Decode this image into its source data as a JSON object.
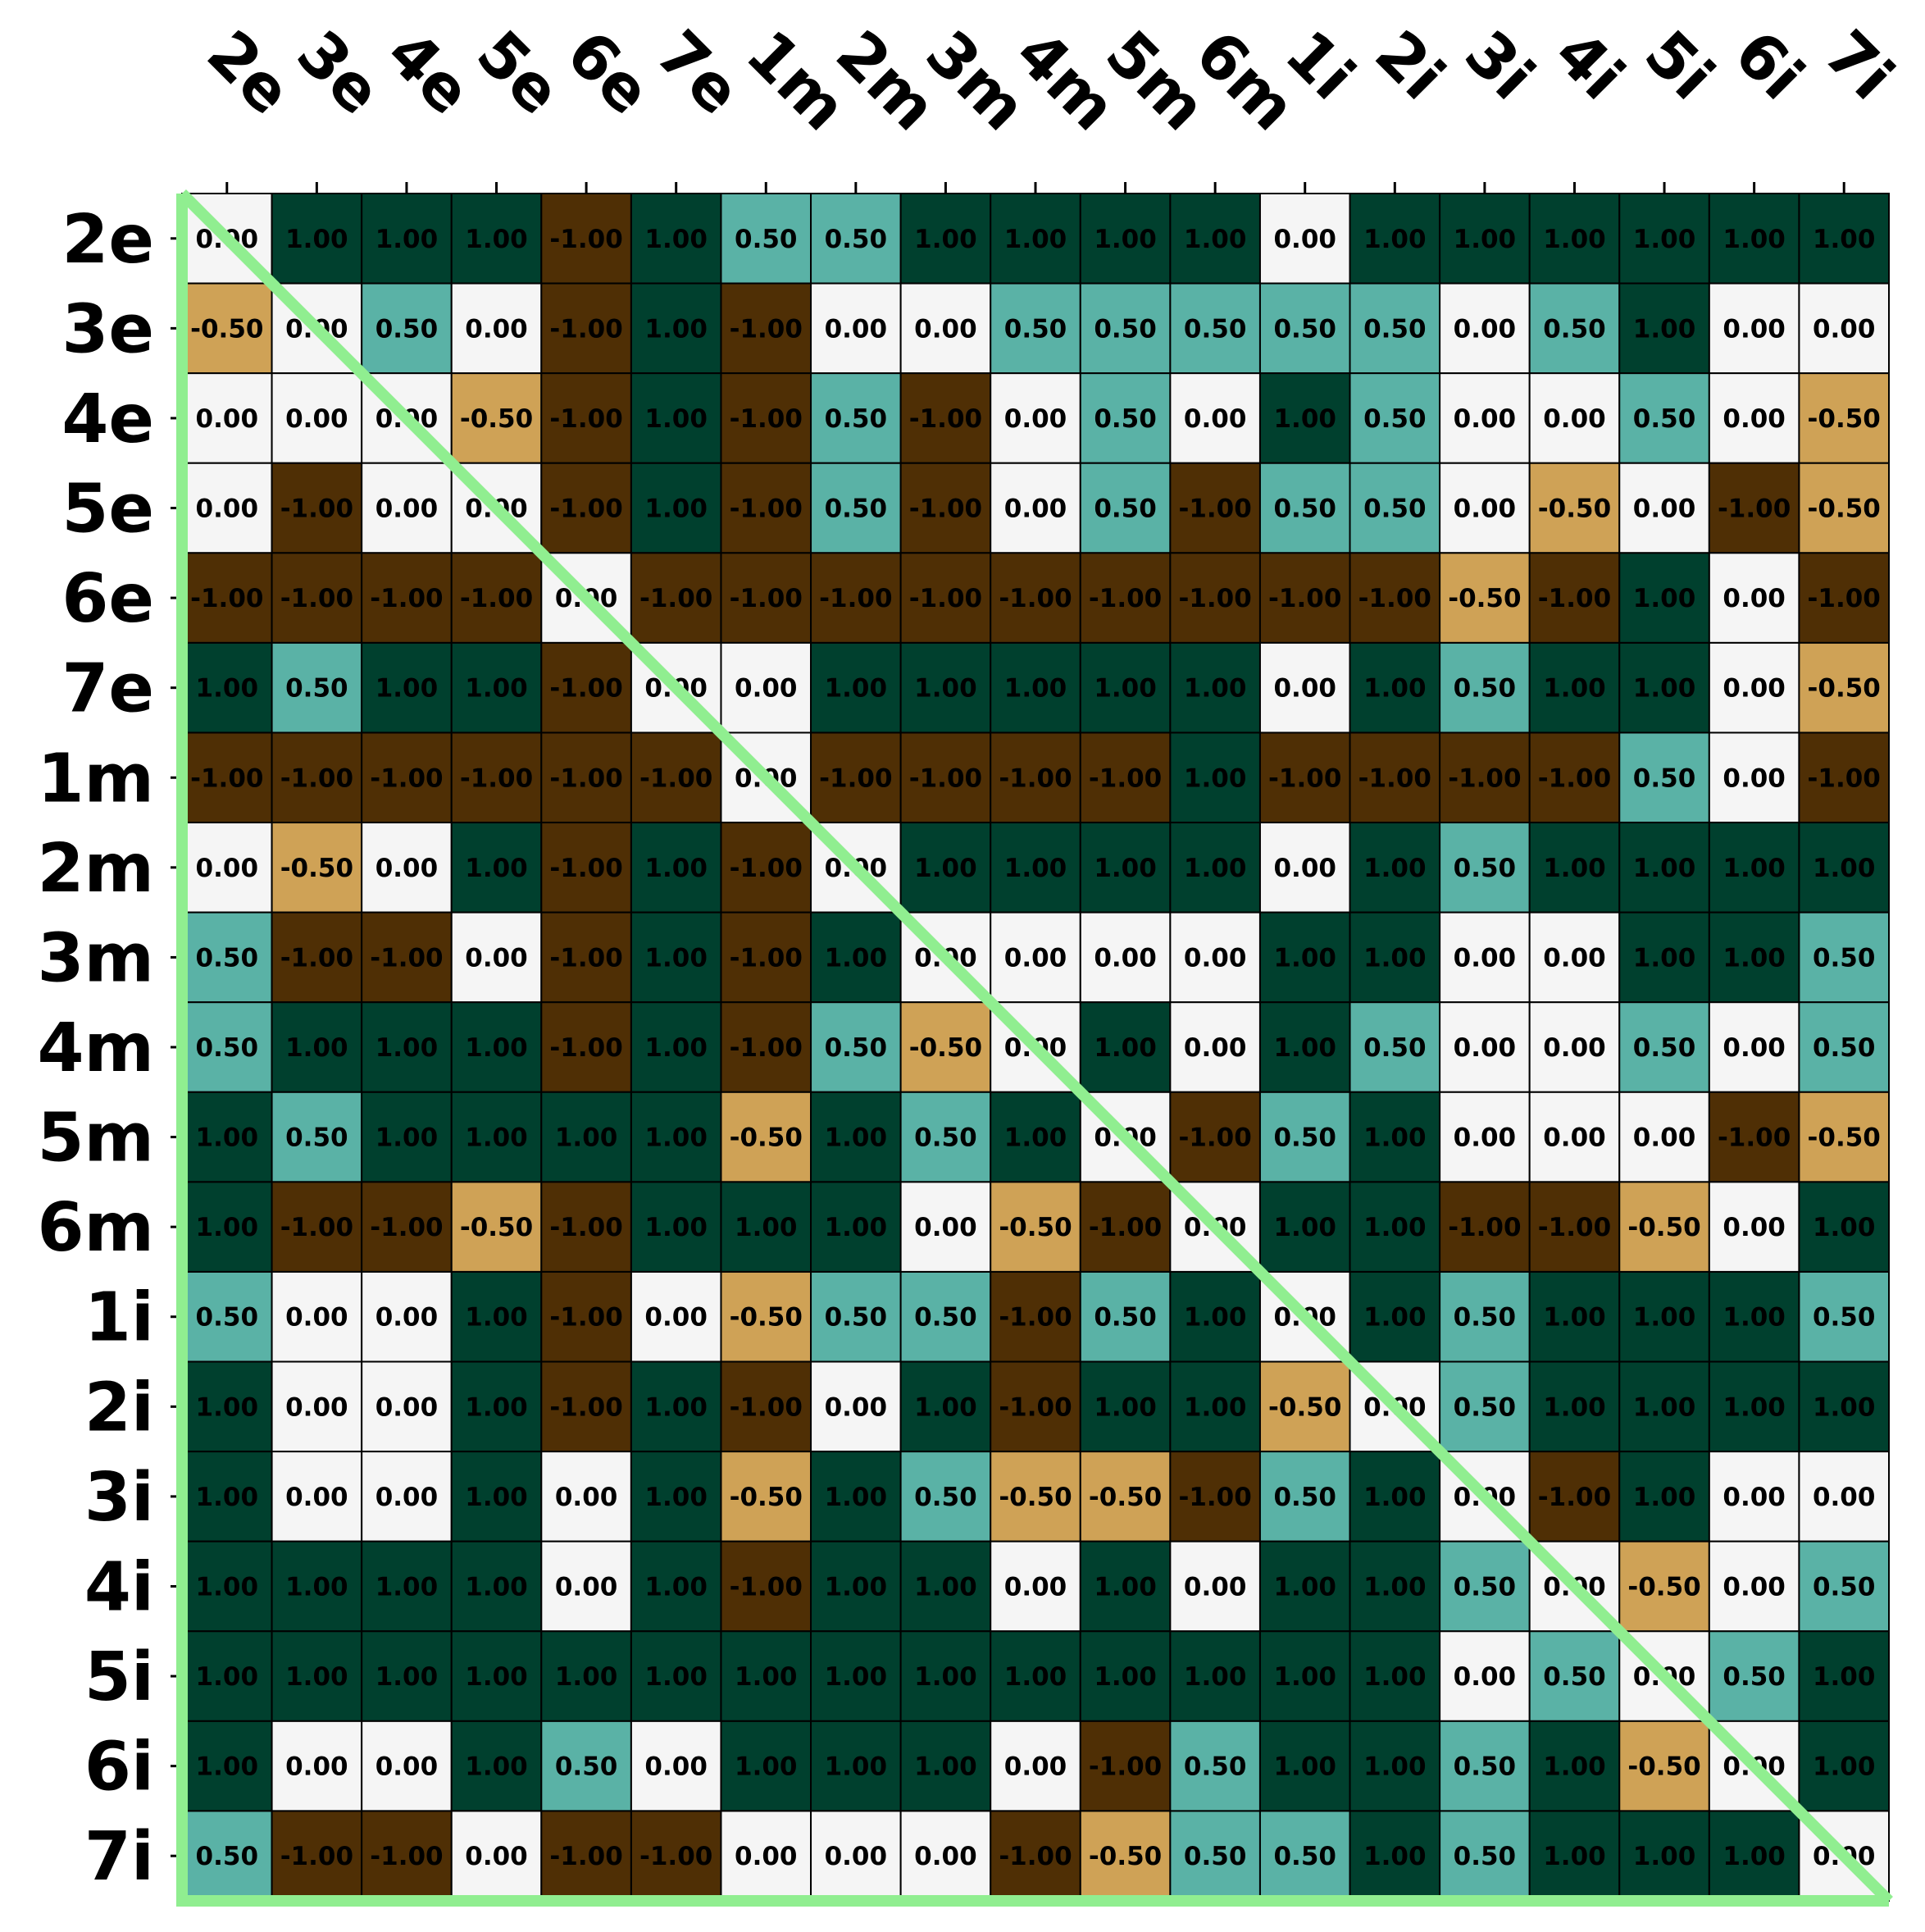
{
  "chart_data": {
    "type": "heatmap",
    "title": "",
    "xlabel": "",
    "ylabel": "",
    "x_labels": [
      "2e",
      "3e",
      "4e",
      "5e",
      "6e",
      "7e",
      "1m",
      "2m",
      "3m",
      "4m",
      "5m",
      "6m",
      "1i",
      "2i",
      "3i",
      "4i",
      "5i",
      "6i",
      "7i"
    ],
    "y_labels": [
      "2e",
      "3e",
      "4e",
      "5e",
      "6e",
      "7e",
      "1m",
      "2m",
      "3m",
      "4m",
      "5m",
      "6m",
      "1i",
      "2i",
      "3i",
      "4i",
      "5i",
      "6i",
      "7i"
    ],
    "value_format": "0.00",
    "color_scale": {
      "-1.0": "#4f2f05",
      "-0.5": "#cfa256",
      "0.0": "#f5f5f5",
      "0.5": "#5ab2a6",
      "1.0": "#00402e"
    },
    "diagonal_line_color": "#90ee90",
    "border_color": "#90ee90",
    "x_labels_position": "top",
    "values": [
      [
        0,
        1,
        1,
        1,
        -1,
        1,
        0.5,
        0.5,
        1,
        1,
        1,
        1,
        0,
        1,
        1,
        1,
        1,
        1,
        1
      ],
      [
        -0.5,
        0,
        0.5,
        0,
        -1,
        1,
        -1,
        0,
        0,
        0.5,
        0.5,
        0.5,
        0.5,
        0.5,
        0,
        0.5,
        1,
        0,
        0
      ],
      [
        0,
        0,
        0,
        -0.5,
        -1,
        1,
        -1,
        0.5,
        -1,
        0,
        0.5,
        0,
        1,
        0.5,
        0,
        0,
        0.5,
        0,
        -0.5
      ],
      [
        0,
        -1,
        0,
        0,
        -1,
        1,
        -1,
        0.5,
        -1,
        0,
        0.5,
        -1,
        0.5,
        0.5,
        0,
        -0.5,
        0,
        -1,
        -0.5
      ],
      [
        -1,
        -1,
        -1,
        -1,
        0,
        -1,
        -1,
        -1,
        -1,
        -1,
        -1,
        -1,
        -1,
        -1,
        -0.5,
        -1,
        1,
        0,
        -1
      ],
      [
        1,
        0.5,
        1,
        1,
        -1,
        0,
        0,
        1,
        1,
        1,
        1,
        1,
        0,
        1,
        0.5,
        1,
        1,
        0,
        -0.5
      ],
      [
        -1,
        -1,
        -1,
        -1,
        -1,
        -1,
        0,
        -1,
        -1,
        -1,
        -1,
        1,
        -1,
        -1,
        -1,
        -1,
        0.5,
        0,
        -1
      ],
      [
        0,
        -0.5,
        0,
        1,
        -1,
        1,
        -1,
        0,
        1,
        1,
        1,
        1,
        0,
        1,
        0.5,
        1,
        1,
        1,
        1
      ],
      [
        0.5,
        -1,
        -1,
        0,
        -1,
        1,
        -1,
        1,
        0,
        0,
        0,
        0,
        1,
        1,
        0,
        0,
        1,
        1,
        0.5
      ],
      [
        0.5,
        1,
        1,
        1,
        -1,
        1,
        -1,
        0.5,
        -0.5,
        0,
        1,
        0,
        1,
        0.5,
        0,
        0,
        0.5,
        0,
        0.5
      ],
      [
        1,
        0.5,
        1,
        1,
        1,
        1,
        -0.5,
        1,
        0.5,
        1,
        0,
        -1,
        0.5,
        1,
        0,
        0,
        0,
        -1,
        -0.5
      ],
      [
        1,
        -1,
        -1,
        -0.5,
        -1,
        1,
        1,
        1,
        0,
        -0.5,
        -1,
        0,
        1,
        1,
        -1,
        -1,
        -0.5,
        0,
        1
      ],
      [
        0.5,
        0,
        0,
        1,
        -1,
        0,
        -0.5,
        0.5,
        0.5,
        -1,
        0.5,
        1,
        0,
        1,
        0.5,
        1,
        1,
        1,
        0.5
      ],
      [
        1,
        0,
        0,
        1,
        -1,
        1,
        -1,
        0,
        1,
        -1,
        1,
        1,
        -0.5,
        0,
        0.5,
        1,
        1,
        1,
        1
      ],
      [
        1,
        0,
        0,
        1,
        0,
        1,
        -0.5,
        1,
        0.5,
        -0.5,
        -0.5,
        -1,
        0.5,
        1,
        0,
        -1,
        1,
        0,
        0
      ],
      [
        1,
        1,
        1,
        1,
        0,
        1,
        -1,
        1,
        1,
        0,
        1,
        0,
        1,
        1,
        0.5,
        0,
        -0.5,
        0,
        0.5
      ],
      [
        1,
        1,
        1,
        1,
        1,
        1,
        1,
        1,
        1,
        1,
        1,
        1,
        1,
        1,
        0,
        0.5,
        0,
        0.5,
        1
      ],
      [
        1,
        0,
        0,
        1,
        0.5,
        0,
        1,
        1,
        1,
        0,
        -1,
        0.5,
        1,
        1,
        0.5,
        1,
        -0.5,
        0,
        1
      ],
      [
        0.5,
        -1,
        -1,
        0,
        -1,
        -1,
        0,
        0,
        0,
        -1,
        -0.5,
        0.5,
        0.5,
        1,
        0.5,
        1,
        1,
        1,
        0
      ]
    ]
  }
}
